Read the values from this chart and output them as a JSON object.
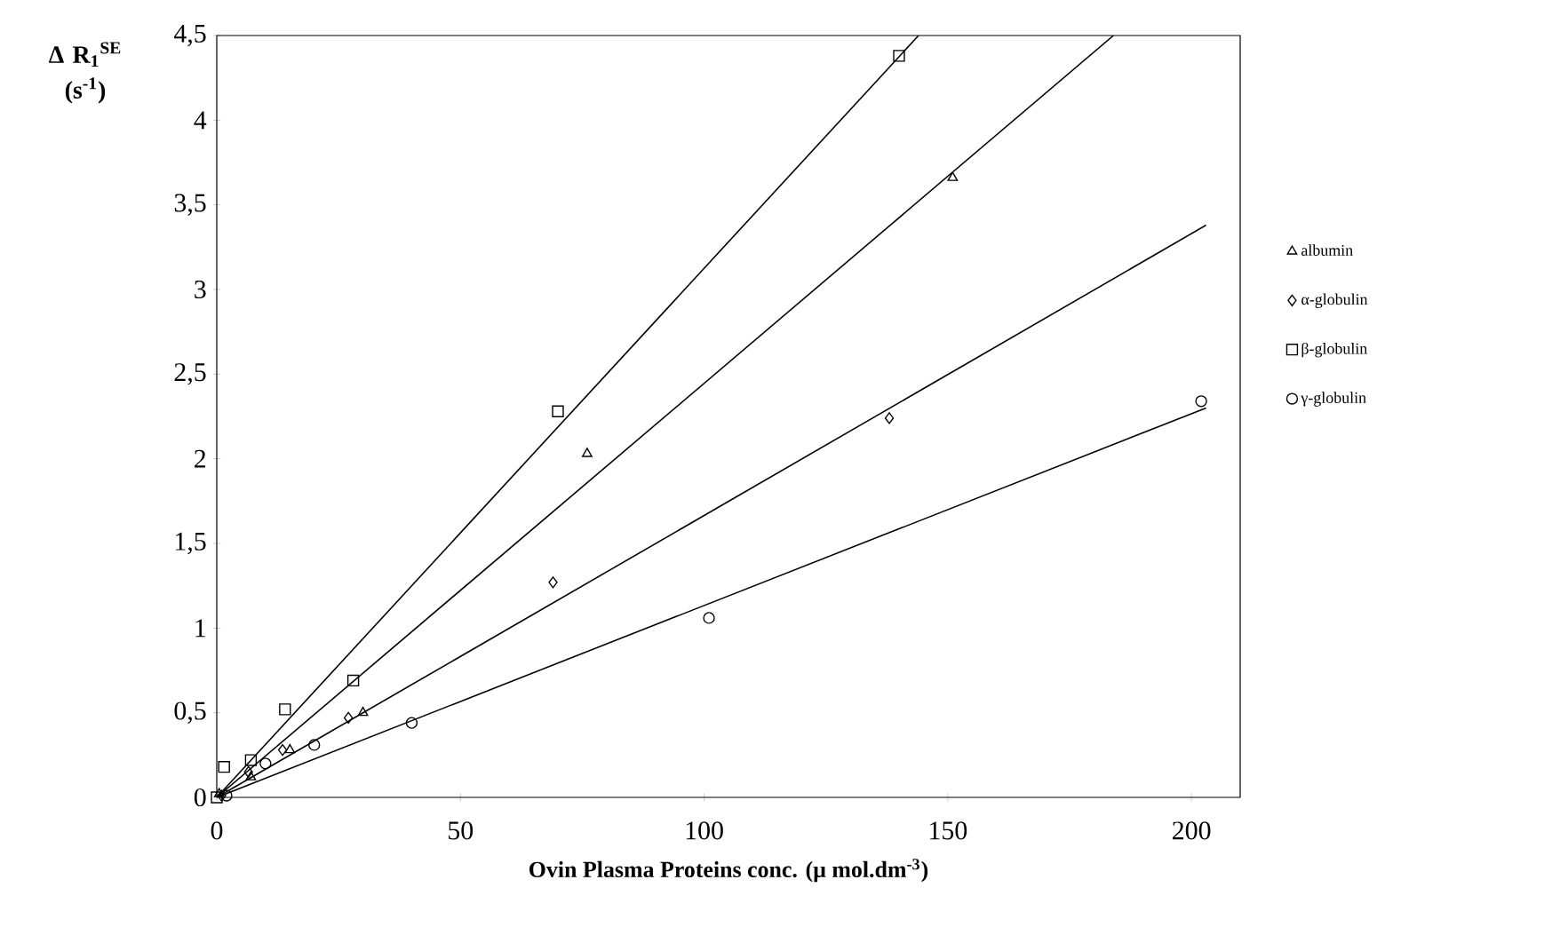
{
  "chart_data": {
    "type": "scatter",
    "xlabel": "Ovin Plasma Proteins conc. (μ mol.dm$^{-3}$)",
    "ylabel": "Δ R$_{1}$$^{SE}$ (s$^{-1}$)",
    "xlim": [
      0,
      210
    ],
    "ylim": [
      0,
      4.5
    ],
    "xticks": [
      0,
      50,
      100,
      150,
      200
    ],
    "yticks": [
      0,
      {
        "value": 0.5,
        "label": "0,5"
      },
      1,
      {
        "value": 1.5,
        "label": "1,5"
      },
      2,
      {
        "value": 2.5,
        "label": "2,5"
      },
      3,
      {
        "value": 3.5,
        "label": "3,5"
      },
      4,
      {
        "value": 4.5,
        "label": "4,5"
      }
    ],
    "grid": false,
    "legend": "right",
    "series": [
      {
        "name": "albumin",
        "marker": "triangle",
        "color": "#000000",
        "x": [
          0.5,
          7,
          15,
          30,
          76,
          151
        ],
        "values": [
          0.02,
          0.12,
          0.28,
          0.5,
          2.03,
          3.66
        ]
      },
      {
        "name": "α-globulin",
        "marker": "diamond",
        "color": "#000000",
        "x": [
          1,
          6.5,
          13.5,
          27,
          69,
          138
        ],
        "values": [
          0.01,
          0.15,
          0.28,
          0.47,
          1.27,
          2.24
        ]
      },
      {
        "name": "β-globulin",
        "marker": "square",
        "color": "#000000",
        "x": [
          0,
          1.5,
          7,
          14,
          28,
          70,
          140
        ],
        "values": [
          0,
          0.18,
          0.22,
          0.52,
          0.69,
          2.28,
          4.38
        ]
      },
      {
        "name": "γ-globulin",
        "marker": "circle",
        "color": "#000000",
        "x": [
          2,
          10,
          20,
          40,
          101,
          202
        ],
        "values": [
          0.01,
          0.2,
          0.31,
          0.44,
          1.06,
          2.34
        ]
      },
      {
        "type": "line",
        "color": "#000000",
        "x": [
          0,
          184
        ],
        "values": [
          0,
          4.5
        ]
      },
      {
        "type": "line",
        "color": "#000000",
        "x": [
          0,
          203
        ],
        "values": [
          0,
          3.38
        ]
      },
      {
        "type": "line",
        "color": "#000000",
        "x": [
          0,
          144
        ],
        "values": [
          0,
          4.5
        ]
      },
      {
        "type": "line",
        "color": "#000000",
        "x": [
          0,
          203
        ],
        "values": [
          0,
          2.3
        ]
      }
    ]
  }
}
